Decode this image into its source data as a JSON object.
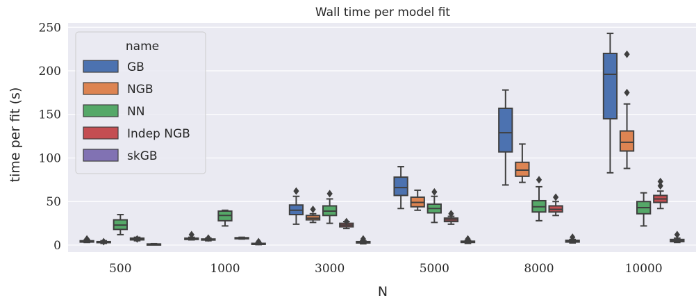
{
  "chart_data": {
    "type": "box",
    "title": "Wall time per model fit",
    "xlabel": "N",
    "ylabel": "time per fit (s)",
    "ylim": [
      -8,
      255
    ],
    "yticks": [
      0,
      50,
      100,
      150,
      200,
      250
    ],
    "categories": [
      "500",
      "1000",
      "3000",
      "5000",
      "8000",
      "10000"
    ],
    "grid": true,
    "legend": {
      "title": "name",
      "placement": "top-left",
      "entries": [
        "GB",
        "NGB",
        "NN",
        "Indep NGB",
        "skGB"
      ]
    },
    "series": [
      {
        "name": "GB",
        "color": "#4c72b0",
        "boxes": [
          {
            "whislo": 3,
            "q1": 3.5,
            "med": 4,
            "q3": 5,
            "whishi": 6,
            "fliers": [
              7
            ]
          },
          {
            "whislo": 6,
            "q1": 6.5,
            "med": 7,
            "q3": 8,
            "whishi": 9,
            "fliers": [
              12
            ]
          },
          {
            "whislo": 24,
            "q1": 35,
            "med": 40,
            "q3": 46,
            "whishi": 56,
            "fliers": [
              62
            ]
          },
          {
            "whislo": 42,
            "q1": 57,
            "med": 66,
            "q3": 78,
            "whishi": 90,
            "fliers": []
          },
          {
            "whislo": 69,
            "q1": 107,
            "med": 129,
            "q3": 157,
            "whishi": 178,
            "fliers": []
          },
          {
            "whislo": 83,
            "q1": 145,
            "med": 196,
            "q3": 220,
            "whishi": 243,
            "fliers": []
          }
        ]
      },
      {
        "name": "NGB",
        "color": "#dd8452",
        "boxes": [
          {
            "whislo": 2,
            "q1": 3,
            "med": 3.5,
            "q3": 4,
            "whishi": 5,
            "fliers": [
              4
            ]
          },
          {
            "whislo": 5,
            "q1": 6,
            "med": 6.5,
            "q3": 7,
            "whishi": 8,
            "fliers": [
              8
            ]
          },
          {
            "whislo": 26,
            "q1": 29,
            "med": 31,
            "q3": 34,
            "whishi": 36,
            "fliers": [
              41
            ]
          },
          {
            "whislo": 40,
            "q1": 44,
            "med": 49,
            "q3": 55,
            "whishi": 63,
            "fliers": []
          },
          {
            "whislo": 72,
            "q1": 79,
            "med": 86,
            "q3": 95,
            "whishi": 116,
            "fliers": []
          },
          {
            "whislo": 88,
            "q1": 108,
            "med": 118,
            "q3": 131,
            "whishi": 162,
            "fliers": [
              175,
              219
            ]
          }
        ]
      },
      {
        "name": "NN",
        "color": "#55a868",
        "boxes": [
          {
            "whislo": 12,
            "q1": 18,
            "med": 23,
            "q3": 29,
            "whishi": 35,
            "fliers": []
          },
          {
            "whislo": 22,
            "q1": 28,
            "med": 34,
            "q3": 39,
            "whishi": 40,
            "fliers": []
          },
          {
            "whislo": 25,
            "q1": 34,
            "med": 39,
            "q3": 45,
            "whishi": 53,
            "fliers": [
              59
            ]
          },
          {
            "whislo": 26,
            "q1": 37,
            "med": 42,
            "q3": 47,
            "whishi": 56,
            "fliers": [
              61
            ]
          },
          {
            "whislo": 28,
            "q1": 38,
            "med": 44,
            "q3": 51,
            "whishi": 67,
            "fliers": [
              75
            ]
          },
          {
            "whislo": 22,
            "q1": 36,
            "med": 43,
            "q3": 50,
            "whishi": 60,
            "fliers": []
          }
        ]
      },
      {
        "name": "Indep NGB",
        "color": "#c44e52",
        "boxes": [
          {
            "whislo": 5,
            "q1": 6,
            "med": 7,
            "q3": 8,
            "whishi": 9,
            "fliers": [
              7
            ]
          },
          {
            "whislo": 7,
            "q1": 7.5,
            "med": 8,
            "q3": 8.5,
            "whishi": 9,
            "fliers": []
          },
          {
            "whislo": 19,
            "q1": 21,
            "med": 23,
            "q3": 25,
            "whishi": 27,
            "fliers": [
              27
            ]
          },
          {
            "whislo": 24,
            "q1": 27,
            "med": 29,
            "q3": 31,
            "whishi": 33,
            "fliers": [
              36
            ]
          },
          {
            "whislo": 34,
            "q1": 38,
            "med": 41,
            "q3": 45,
            "whishi": 50,
            "fliers": [
              55
            ]
          },
          {
            "whislo": 42,
            "q1": 49,
            "med": 53,
            "q3": 57,
            "whishi": 62,
            "fliers": [
              68,
              73
            ]
          }
        ]
      },
      {
        "name": "skGB",
        "color": "#8172b3",
        "boxes": [
          {
            "whislo": 0.5,
            "q1": 0.8,
            "med": 1,
            "q3": 1.3,
            "whishi": 1.6,
            "fliers": []
          },
          {
            "whislo": 0.5,
            "q1": 1,
            "med": 1.5,
            "q3": 2,
            "whishi": 2.5,
            "fliers": [
              4
            ]
          },
          {
            "whislo": 1.5,
            "q1": 2.5,
            "med": 3,
            "q3": 4,
            "whishi": 5,
            "fliers": [
              7
            ]
          },
          {
            "whislo": 2,
            "q1": 3,
            "med": 3.5,
            "q3": 4.5,
            "whishi": 5.5,
            "fliers": [
              7
            ]
          },
          {
            "whislo": 2.5,
            "q1": 3.5,
            "med": 4.5,
            "q3": 5.5,
            "whishi": 6.5,
            "fliers": [
              9
            ]
          },
          {
            "whislo": 3,
            "q1": 4,
            "med": 5,
            "q3": 6.5,
            "whishi": 8,
            "fliers": [
              12
            ]
          }
        ]
      }
    ]
  }
}
